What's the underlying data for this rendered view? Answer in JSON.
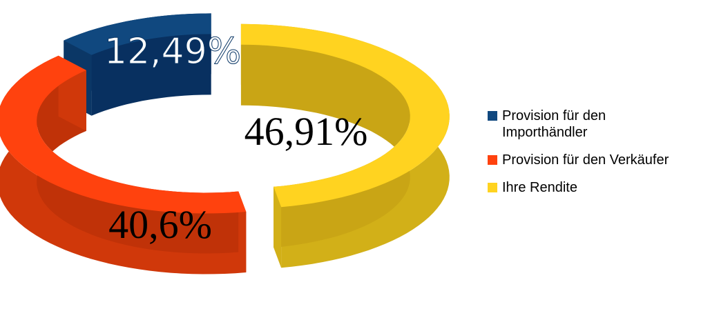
{
  "chart_data": {
    "type": "pie",
    "style": "3d-exploded-donut",
    "title": "",
    "legend_position": "right",
    "series": [
      {
        "name": "Provision für den Importhändler",
        "legend_lines": [
          "Provision für den",
          "Importhändler"
        ],
        "value": 12.49,
        "label": "12,49%",
        "color": "#10487F",
        "color_side": "#0B3766",
        "color_inner": "#083060"
      },
      {
        "name": "Provision für den Verkäufer",
        "legend_lines": [
          "Provision für den Verkäufer"
        ],
        "value": 40.6,
        "label": "40,6%",
        "color": "#FF420E",
        "color_side": "#D0380A",
        "color_inner": "#C03208"
      },
      {
        "name": "Ihre Rendite",
        "legend_lines": [
          "Ihre Rendite"
        ],
        "value": 46.91,
        "label": "46,91%",
        "color": "#FFD320",
        "color_side": "#D2B018",
        "color_inner": "#C9A515"
      }
    ]
  }
}
